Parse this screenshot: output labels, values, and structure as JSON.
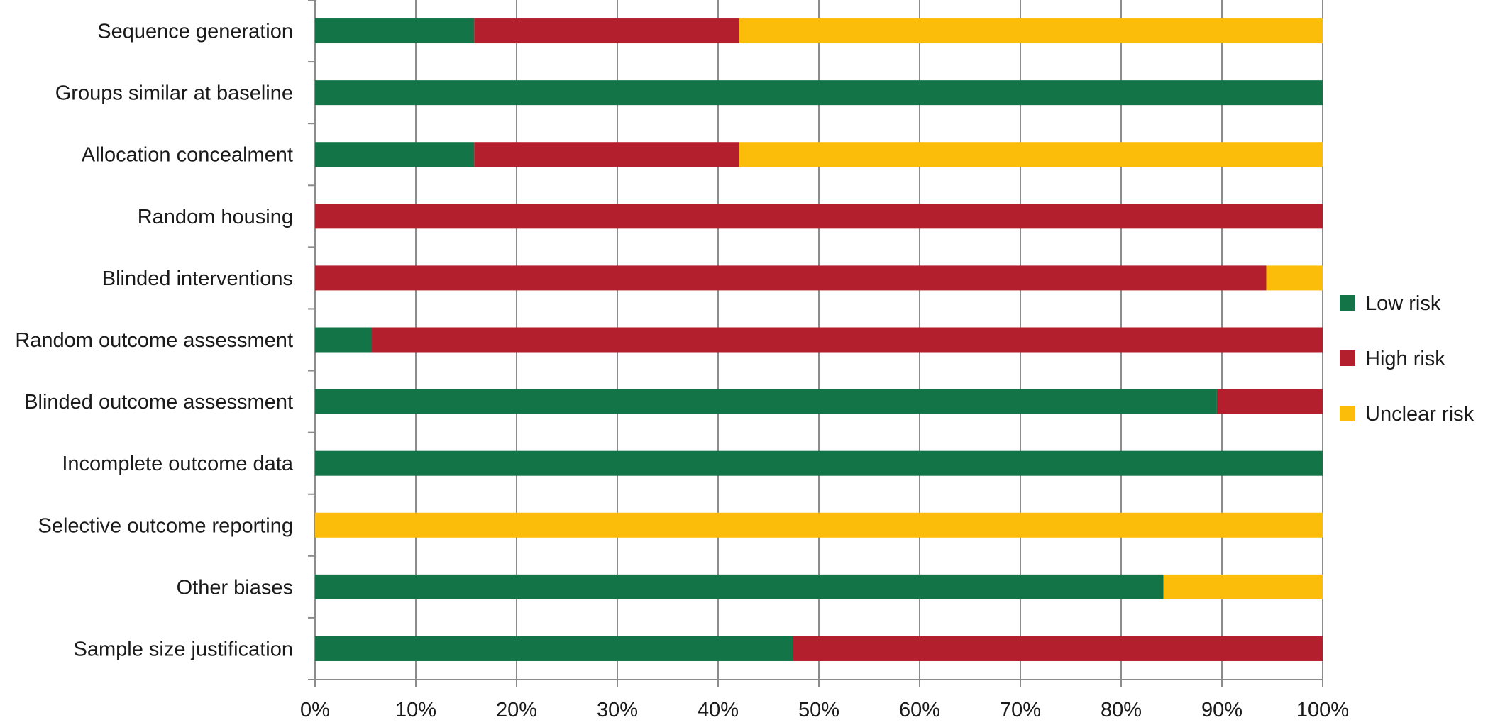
{
  "chart_data": {
    "type": "bar",
    "orientation": "horizontal",
    "stacked": true,
    "percent_stacked": true,
    "categories": [
      "Sequence generation",
      "Groups similar at baseline",
      "Allocation concealment",
      "Random housing",
      "Blinded interventions",
      "Random outcome assessment",
      "Blinded outcome assessment",
      "Incomplete outcome data",
      "Selective outcome reporting",
      "Other biases",
      "Sample size justification"
    ],
    "series": [
      {
        "name": "Low risk",
        "color": "#137547",
        "values": [
          15.8,
          100,
          15.8,
          0,
          0,
          5.6,
          89.5,
          100,
          0,
          84.2,
          47.4
        ]
      },
      {
        "name": "High risk",
        "color": "#b41f2e",
        "values": [
          26.3,
          0,
          26.3,
          100,
          94.4,
          94.4,
          10.5,
          0,
          0,
          0,
          52.6
        ]
      },
      {
        "name": "Unclear risk",
        "color": "#fbbd09",
        "values": [
          57.9,
          0,
          57.9,
          0,
          5.6,
          0,
          0,
          0,
          100,
          15.8,
          0
        ]
      }
    ],
    "x_ticks": [
      "0%",
      "10%",
      "20%",
      "30%",
      "40%",
      "50%",
      "60%",
      "70%",
      "80%",
      "90%",
      "100%"
    ],
    "xlim": [
      0,
      100
    ],
    "grid": "vertical",
    "legend_position": "right"
  }
}
